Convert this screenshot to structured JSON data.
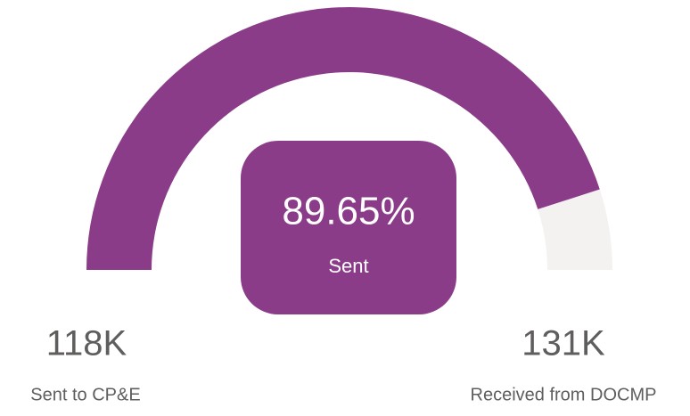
{
  "chart_data": {
    "type": "gauge",
    "value": 118000,
    "value_label": "118K",
    "value_name": "Sent to CP&E",
    "max": 131000,
    "max_label": "131K",
    "max_name": "Received from DOCMP",
    "percent": 89.65,
    "percent_label": "89.65%",
    "percent_name": "Sent",
    "color": "#8b3c89",
    "track_color": "#f3f2f1"
  }
}
